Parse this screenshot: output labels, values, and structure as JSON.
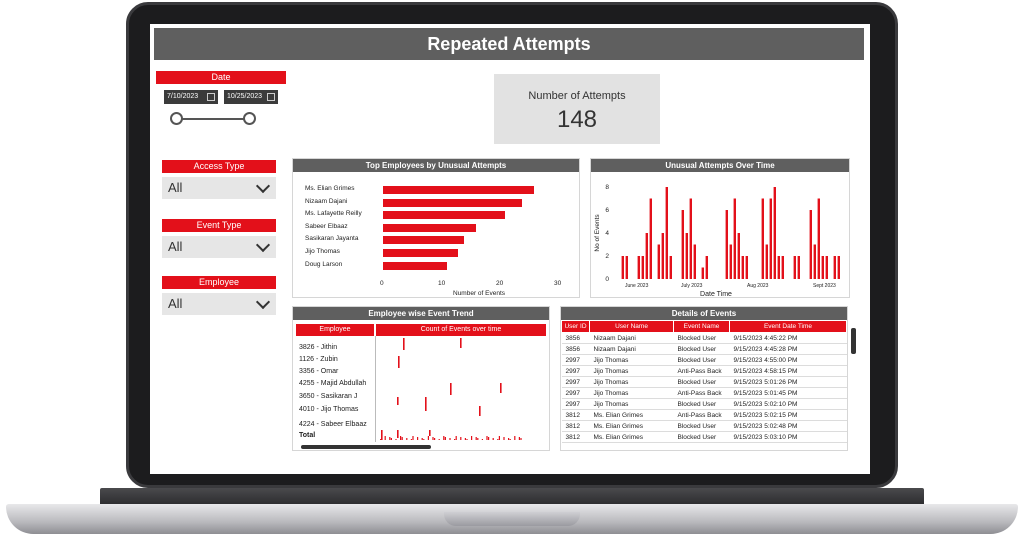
{
  "title": "Repeated Attempts",
  "date": {
    "label": "Date",
    "start": "7/10/2023",
    "end": "10/25/2023"
  },
  "filters": [
    {
      "label": "Access Type",
      "value": "All"
    },
    {
      "label": "Event Type",
      "value": "All"
    },
    {
      "label": "Employee",
      "value": "All"
    }
  ],
  "kpi": {
    "label": "Number of Attempts",
    "value": "148"
  },
  "colors": {
    "accent": "#e3101a",
    "header": "#5f5f5f"
  },
  "top_employees": {
    "title": "Top Employees by Unusual Attempts",
    "xlabel": "Number of Events",
    "ticks": [
      "0",
      "10",
      "20",
      "30"
    ],
    "chart_data": {
      "type": "bar",
      "orientation": "horizontal",
      "categories": [
        "Ms. Elian Grimes",
        "Nizaam Dajani",
        "Ms. Lafayette Reilly",
        "Sabeer Elbaaz",
        "Sasikaran Jayanta",
        "Jijo Thomas",
        "Doug Larson"
      ],
      "values": [
        26,
        24,
        21,
        16,
        14,
        13,
        11
      ],
      "xlabel": "Number of Events",
      "xlim": [
        0,
        30
      ]
    }
  },
  "over_time": {
    "title": "Unusual Attempts Over Time",
    "ylabel": "No of Events",
    "xlabel": "Date Time",
    "yticks": [
      "0",
      "2",
      "4",
      "6",
      "8"
    ],
    "xticks": [
      "June 2023",
      "July 2023",
      "Aug 2023",
      "Sept 2023"
    ],
    "chart_data": {
      "type": "bar",
      "values": [
        2,
        2,
        0,
        0,
        2,
        2,
        4,
        7,
        0,
        3,
        4,
        8,
        2,
        0,
        0,
        6,
        4,
        7,
        3,
        0,
        1,
        2,
        0,
        0,
        0,
        0,
        6,
        3,
        7,
        4,
        2,
        2,
        0,
        0,
        0,
        7,
        3,
        7,
        8,
        2,
        2,
        0,
        0,
        2,
        2,
        0,
        0,
        6,
        3,
        7,
        2,
        2,
        0,
        2,
        2
      ],
      "ylabel": "No of Events",
      "xlabel": "Date Time",
      "ylim": [
        0,
        8
      ]
    }
  },
  "trend": {
    "title": "Employee wise Event Trend",
    "col_employee": "Employee",
    "col_count": "Count of Events over time",
    "rows": [
      "3826 - Jithin",
      "1126 - Zubin",
      "3356 - Omar",
      "4255 - Majid Abdullah",
      "3650 - Sasikaran J",
      "4010 - Jijo Thomas",
      "4224 - Sabeer Elbaaz",
      "Total"
    ]
  },
  "details": {
    "title": "Details of Events",
    "columns": [
      "User ID",
      "User Name",
      "Event Name",
      "Event Date Time"
    ],
    "rows": [
      [
        "3856",
        "Nizaam Dajani",
        "Blocked User",
        "9/15/2023 4:45:22 PM"
      ],
      [
        "3856",
        "Nizaam Dajani",
        "Blocked User",
        "9/15/2023 4:45:28 PM"
      ],
      [
        "2997",
        "Jijo Thomas",
        "Blocked User",
        "9/15/2023 4:55:00 PM"
      ],
      [
        "2997",
        "Jijo Thomas",
        "Anti-Pass Back",
        "9/15/2023 4:58:15 PM"
      ],
      [
        "2997",
        "Jijo Thomas",
        "Blocked User",
        "9/15/2023 5:01:26 PM"
      ],
      [
        "2997",
        "Jijo Thomas",
        "Anti-Pass Back",
        "9/15/2023 5:01:45 PM"
      ],
      [
        "2997",
        "Jijo Thomas",
        "Blocked User",
        "9/15/2023 5:02:10 PM"
      ],
      [
        "3812",
        "Ms. Elian Grimes",
        "Anti-Pass Back",
        "9/15/2023 5:02:15 PM"
      ],
      [
        "3812",
        "Ms. Elian Grimes",
        "Blocked User",
        "9/15/2023 5:02:48 PM"
      ],
      [
        "3812",
        "Ms. Elian Grimes",
        "Blocked User",
        "9/15/2023 5:03:10 PM"
      ]
    ]
  }
}
